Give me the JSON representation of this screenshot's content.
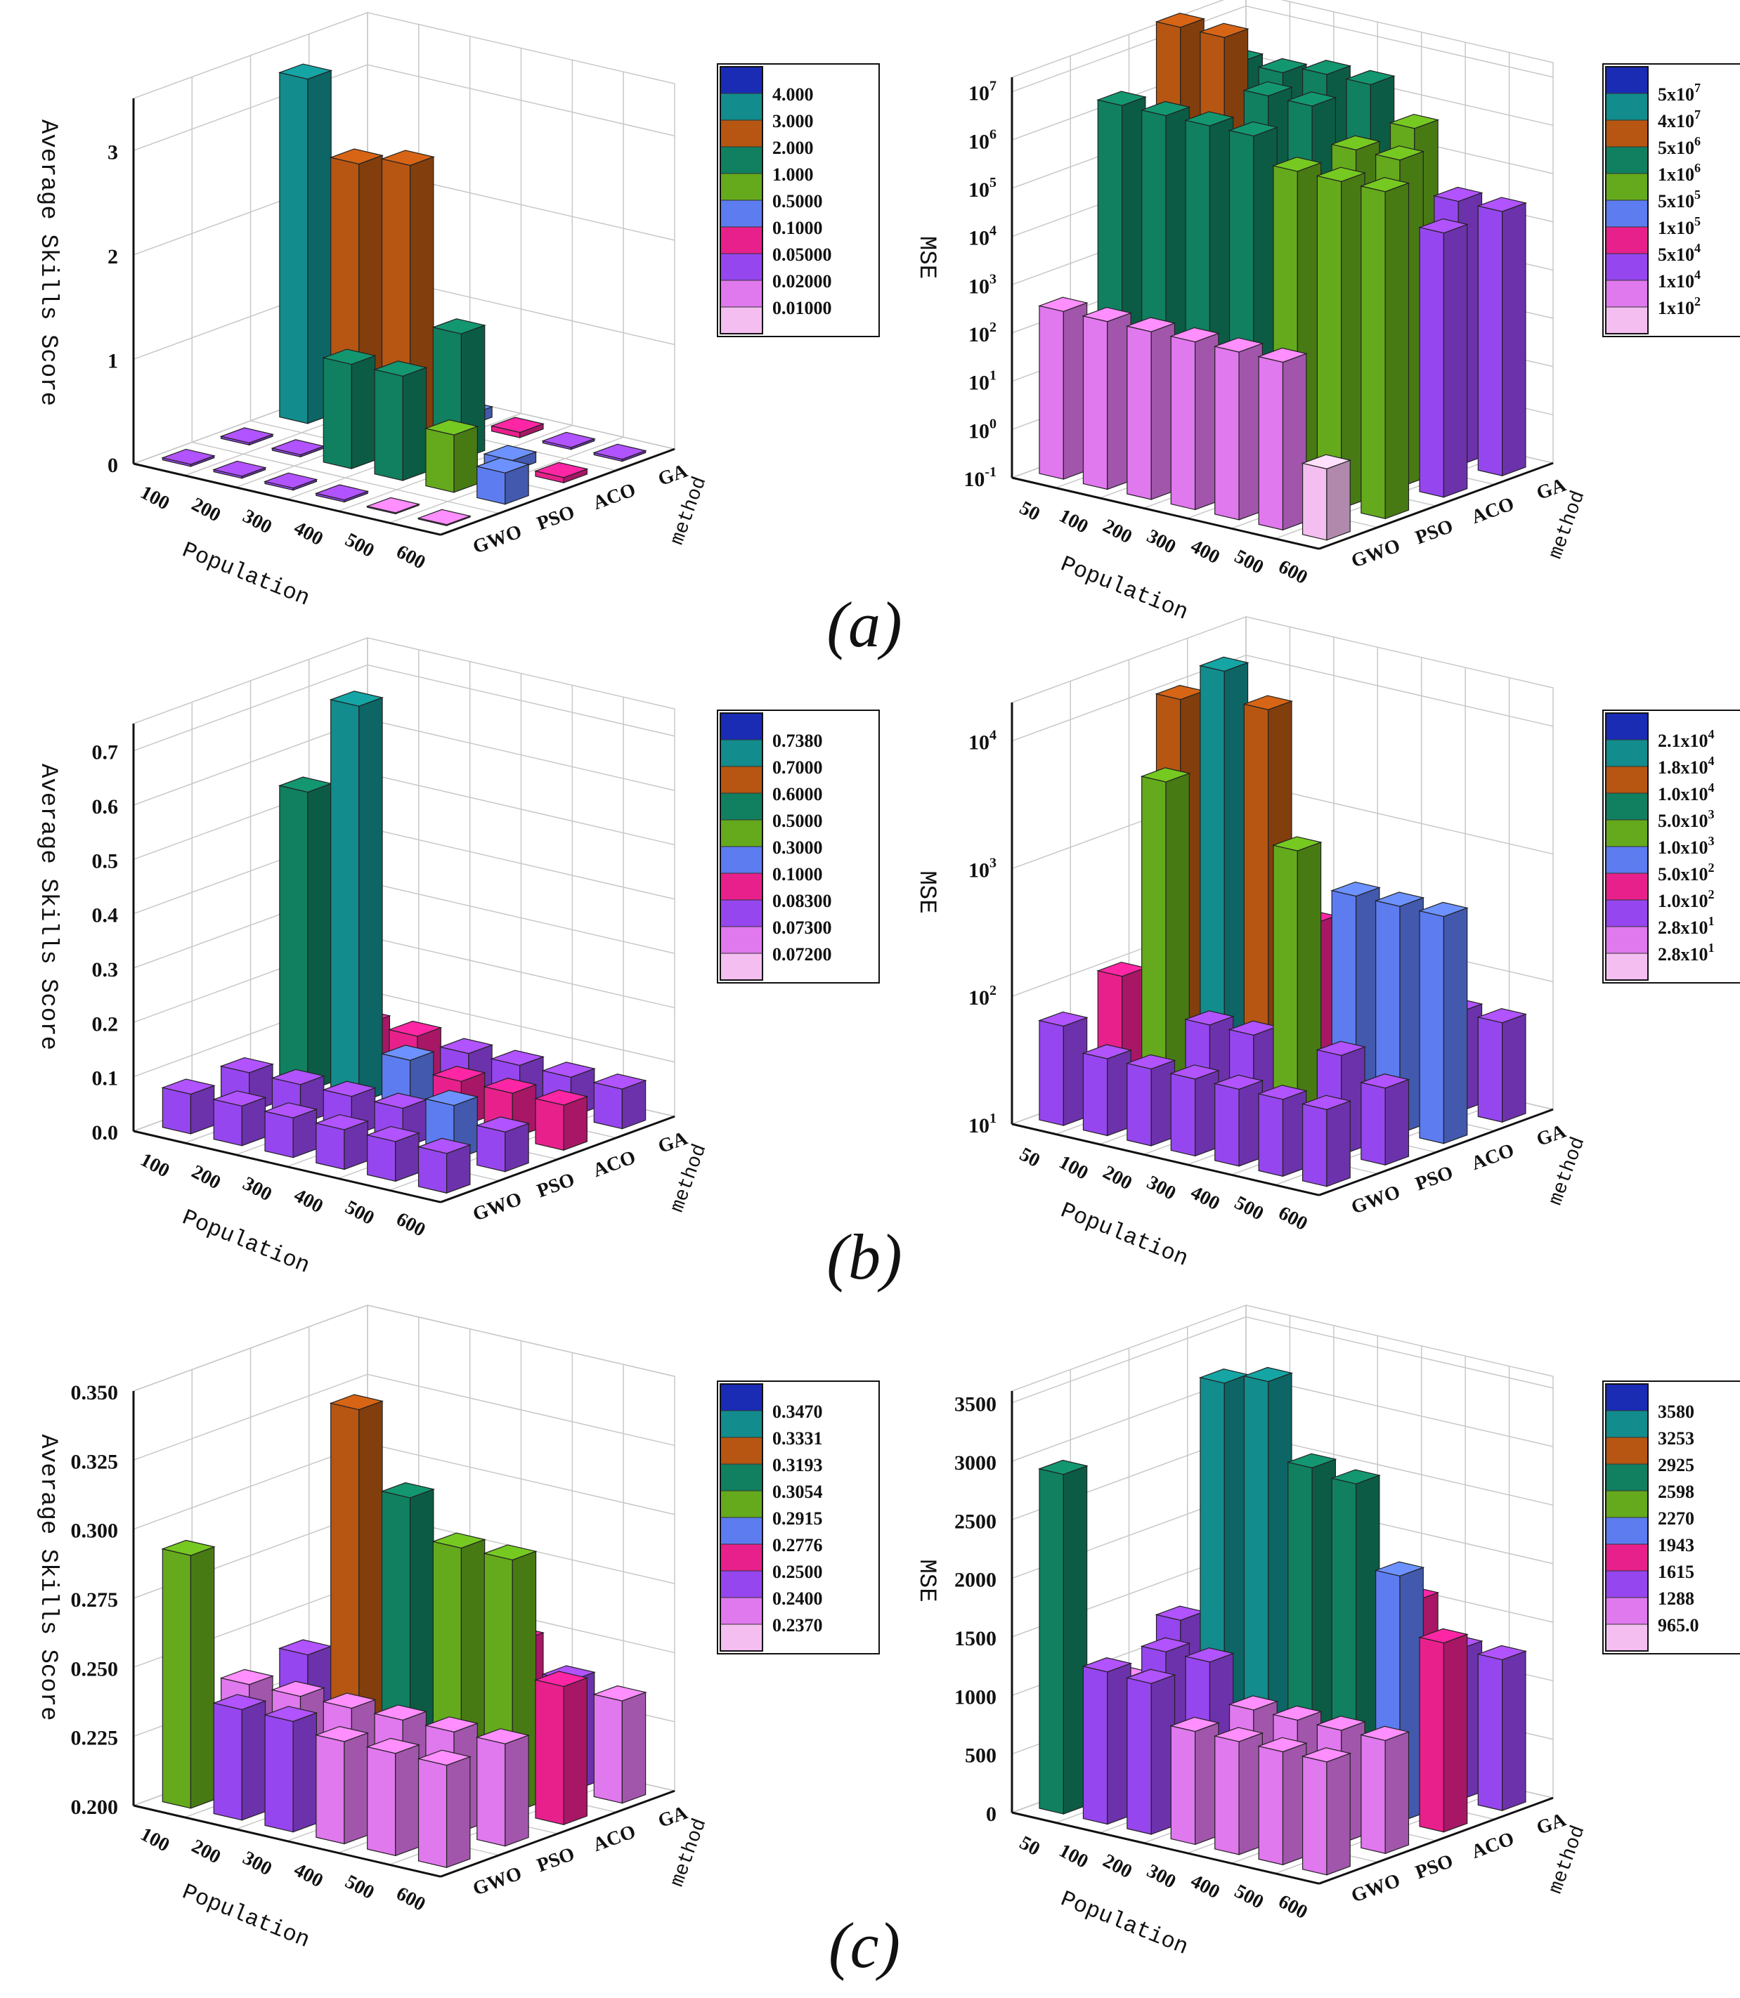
{
  "figure": {
    "panel_labels": [
      "(a)",
      "(b)",
      "(c)"
    ]
  },
  "legend_colors": [
    "#1a2bb4",
    "#128c8c",
    "#b65612",
    "#108060",
    "#64aa1c",
    "#5c7cf0",
    "#e8208c",
    "#9646ee",
    "#e078ee",
    "#f4bef0"
  ],
  "chart_data": [
    {
      "id": "a-left",
      "type": "bar3d",
      "scale": "linear",
      "ylim": [
        0,
        3.5
      ],
      "ylabel": "Average Skills Score",
      "xlabel": "Population",
      "zlabel": "method",
      "x": [
        "100",
        "200",
        "300",
        "400",
        "500",
        "600"
      ],
      "z": [
        "GWO",
        "PSO",
        "ACO",
        "GA"
      ],
      "yticks": [
        {
          "v": 0,
          "t": "0"
        },
        {
          "v": 1,
          "t": "1"
        },
        {
          "v": 2,
          "t": "2"
        },
        {
          "v": 3,
          "t": "3"
        }
      ],
      "legend": [
        "4.000",
        "3.000",
        "2.000",
        "1.000",
        "0.5000",
        "0.1000",
        "0.05000",
        "0.02000",
        "0.01000"
      ],
      "legend_values": [
        4,
        3,
        2,
        1,
        0.5,
        0.1,
        0.05,
        0.02,
        0.01
      ],
      "values": [
        [
          0.02,
          0.02,
          0.02,
          0.02,
          0.01,
          0.01
        ],
        [
          0.02,
          0.02,
          1.0,
          1.0,
          0.55,
          0.3
        ],
        [
          3.3,
          2.6,
          2.7,
          1.2,
          0.1,
          0.05
        ],
        [
          0.02,
          0.02,
          0.1,
          0.05,
          0.02,
          0.02
        ]
      ]
    },
    {
      "id": "a-right",
      "type": "bar3d",
      "scale": "log",
      "ylim": [
        0.1,
        20000000
      ],
      "ylabel": "MSE",
      "xlabel": "Population",
      "zlabel": "method",
      "x": [
        "50",
        "100",
        "200",
        "300",
        "400",
        "500",
        "600"
      ],
      "z": [
        "GWO",
        "PSO",
        "ACO",
        "GA"
      ],
      "yticks": [
        {
          "v": 0.1,
          "b": "10",
          "e": "-1"
        },
        {
          "v": 1,
          "b": "10",
          "e": "0"
        },
        {
          "v": 10,
          "b": "10",
          "e": "1"
        },
        {
          "v": 100,
          "b": "10",
          "e": "2"
        },
        {
          "v": 1000,
          "b": "10",
          "e": "3"
        },
        {
          "v": 10000,
          "b": "10",
          "e": "4"
        },
        {
          "v": 100000,
          "b": "10",
          "e": "5"
        },
        {
          "v": 1000000,
          "b": "10",
          "e": "6"
        },
        {
          "v": 10000000,
          "b": "10",
          "e": "7"
        }
      ],
      "legend": [
        {
          "b": "5x10",
          "e": "7"
        },
        {
          "b": "4x10",
          "e": "7"
        },
        {
          "b": "5x10",
          "e": "6"
        },
        {
          "b": "1x10",
          "e": "6"
        },
        {
          "b": "5x10",
          "e": "5"
        },
        {
          "b": "1x10",
          "e": "5"
        },
        {
          "b": "5x10",
          "e": "4"
        },
        {
          "b": "1x10",
          "e": "4"
        },
        {
          "b": "1x10",
          "e": "2"
        }
      ],
      "legend_values": [
        50000000,
        40000000,
        5000000,
        1000000,
        500000,
        100000,
        50000,
        10000,
        100
      ],
      "values": [
        [
          300,
          300,
          300,
          300,
          300,
          300,
          3
        ],
        [
          2000000,
          2000000,
          2000000,
          2000000,
          600000,
          600000,
          600000
        ],
        [
          30000000,
          30000000,
          3000000,
          3000000,
          600000,
          600000,
          30000
        ],
        [
          2000000,
          2000000,
          3000000,
          3000000,
          600000,
          30000,
          30000
        ]
      ]
    },
    {
      "id": "b-left",
      "type": "bar3d",
      "scale": "linear",
      "ylim": [
        0,
        0.75
      ],
      "ylabel": "Average Skills Score",
      "xlabel": "Population",
      "zlabel": "method",
      "x": [
        "100",
        "200",
        "300",
        "400",
        "500",
        "600"
      ],
      "z": [
        "GWO",
        "PSO",
        "ACO",
        "GA"
      ],
      "yticks": [
        {
          "v": 0,
          "t": "0.0"
        },
        {
          "v": 0.1,
          "t": "0.1"
        },
        {
          "v": 0.2,
          "t": "0.2"
        },
        {
          "v": 0.3,
          "t": "0.3"
        },
        {
          "v": 0.4,
          "t": "0.4"
        },
        {
          "v": 0.5,
          "t": "0.5"
        },
        {
          "v": 0.6,
          "t": "0.6"
        },
        {
          "v": 0.7,
          "t": "0.7"
        }
      ],
      "legend": [
        "0.7380",
        "0.7000",
        "0.6000",
        "0.5000",
        "0.3000",
        "0.1000",
        "0.08300",
        "0.07300",
        "0.07200"
      ],
      "legend_values": [
        0.738,
        0.7,
        0.6,
        0.5,
        0.3,
        0.1,
        0.083,
        0.073,
        0.072
      ],
      "values": [
        [
          0.073,
          0.073,
          0.073,
          0.073,
          0.073,
          0.073
        ],
        [
          0.073,
          0.073,
          0.073,
          0.073,
          0.1,
          0.073
        ],
        [
          0.55,
          0.73,
          0.1,
          0.083,
          0.083,
          0.083
        ],
        [
          0.083,
          0.083,
          0.073,
          0.073,
          0.073,
          0.073
        ]
      ]
    },
    {
      "id": "b-right",
      "type": "bar3d",
      "scale": "log",
      "ylim": [
        10,
        20000
      ],
      "ylabel": "MSE",
      "xlabel": "Population",
      "zlabel": "method",
      "x": [
        "50",
        "100",
        "200",
        "300",
        "400",
        "500",
        "600"
      ],
      "z": [
        "GWO",
        "PSO",
        "ACO",
        "GA"
      ],
      "yticks": [
        {
          "v": 10,
          "b": "10",
          "e": "1"
        },
        {
          "v": 100,
          "b": "10",
          "e": "2"
        },
        {
          "v": 1000,
          "b": "10",
          "e": "3"
        },
        {
          "v": 10000,
          "b": "10",
          "e": "4"
        }
      ],
      "legend": [
        {
          "b": "2.1x10",
          "e": "4"
        },
        {
          "b": "1.8x10",
          "e": "4"
        },
        {
          "b": "1.0x10",
          "e": "4"
        },
        {
          "b": "5.0x10",
          "e": "3"
        },
        {
          "b": "1.0x10",
          "e": "3"
        },
        {
          "b": "5.0x10",
          "e": "2"
        },
        {
          "b": "1.0x10",
          "e": "2"
        },
        {
          "b": "2.8x10",
          "e": "1"
        },
        {
          "b": "2.8x10",
          "e": "1"
        }
      ],
      "legend_values": [
        21000,
        18000,
        10000,
        5000,
        1000,
        500,
        100,
        28,
        28
      ],
      "values": [
        [
          60,
          40,
          40,
          40,
          40,
          40,
          40
        ],
        [
          100,
          4000,
          60,
          60,
          2000,
          60,
          40
        ],
        [
          10000,
          20000,
          12000,
          300,
          600,
          600,
          600
        ],
        [
          60,
          60,
          60,
          60,
          60,
          60,
          60
        ]
      ]
    },
    {
      "id": "c-left",
      "type": "bar3d",
      "scale": "linear",
      "ylim": [
        0.2,
        0.35
      ],
      "ylabel": "Average Skills Score",
      "xlabel": "Population",
      "zlabel": "method",
      "x": [
        "100",
        "200",
        "300",
        "400",
        "500",
        "600"
      ],
      "z": [
        "GWO",
        "PSO",
        "ACO",
        "GA"
      ],
      "yticks": [
        {
          "v": 0.2,
          "t": "0.200"
        },
        {
          "v": 0.225,
          "t": "0.225"
        },
        {
          "v": 0.25,
          "t": "0.250"
        },
        {
          "v": 0.275,
          "t": "0.275"
        },
        {
          "v": 0.3,
          "t": "0.300"
        },
        {
          "v": 0.325,
          "t": "0.325"
        },
        {
          "v": 0.35,
          "t": "0.350"
        }
      ],
      "legend": [
        "0.3470",
        "0.3331",
        "0.3193",
        "0.3054",
        "0.2915",
        "0.2776",
        "0.2500",
        "0.2400",
        "0.2370"
      ],
      "legend_values": [
        0.347,
        0.3331,
        0.3193,
        0.3054,
        0.2915,
        0.2776,
        0.25,
        0.24,
        0.237
      ],
      "values": [
        [
          0.2915,
          0.24,
          0.24,
          0.237,
          0.237,
          0.237
        ],
        [
          0.237,
          0.237,
          0.237,
          0.237,
          0.237,
          0.237
        ],
        [
          0.24,
          0.333,
          0.3054,
          0.2915,
          0.2915,
          0.25
        ],
        [
          0.237,
          0.25,
          0.24,
          0.25,
          0.24,
          0.237
        ]
      ]
    },
    {
      "id": "c-right",
      "type": "bar3d",
      "scale": "linear",
      "ylim": [
        0,
        3600
      ],
      "ylabel": "MSE",
      "xlabel": "Population",
      "zlabel": "method",
      "x": [
        "50",
        "100",
        "200",
        "300",
        "400",
        "500",
        "600"
      ],
      "z": [
        "GWO",
        "PSO",
        "ACO",
        "GA"
      ],
      "yticks": [
        {
          "v": 0,
          "t": "0"
        },
        {
          "v": 500,
          "t": "500"
        },
        {
          "v": 1000,
          "t": "1000"
        },
        {
          "v": 1500,
          "t": "1500"
        },
        {
          "v": 2000,
          "t": "2000"
        },
        {
          "v": 2500,
          "t": "2500"
        },
        {
          "v": 3000,
          "t": "3000"
        },
        {
          "v": 3500,
          "t": "3500"
        }
      ],
      "legend": [
        "3580",
        "3253",
        "2925",
        "2598",
        "2270",
        "1943",
        "1615",
        "1288",
        "965.0"
      ],
      "legend_values": [
        3580,
        3253,
        2925,
        2598,
        2270,
        1943,
        1615,
        1288,
        965
      ],
      "values": [
        [
          2900,
          1300,
          1288,
          965,
          965,
          965,
          965
        ],
        [
          965,
          1288,
          1288,
          965,
          965,
          965,
          965
        ],
        [
          1288,
          3400,
          3500,
          2850,
          2800,
          2100,
          1615
        ],
        [
          1288,
          1288,
          1288,
          1288,
          1615,
          1288,
          1288
        ]
      ]
    }
  ]
}
